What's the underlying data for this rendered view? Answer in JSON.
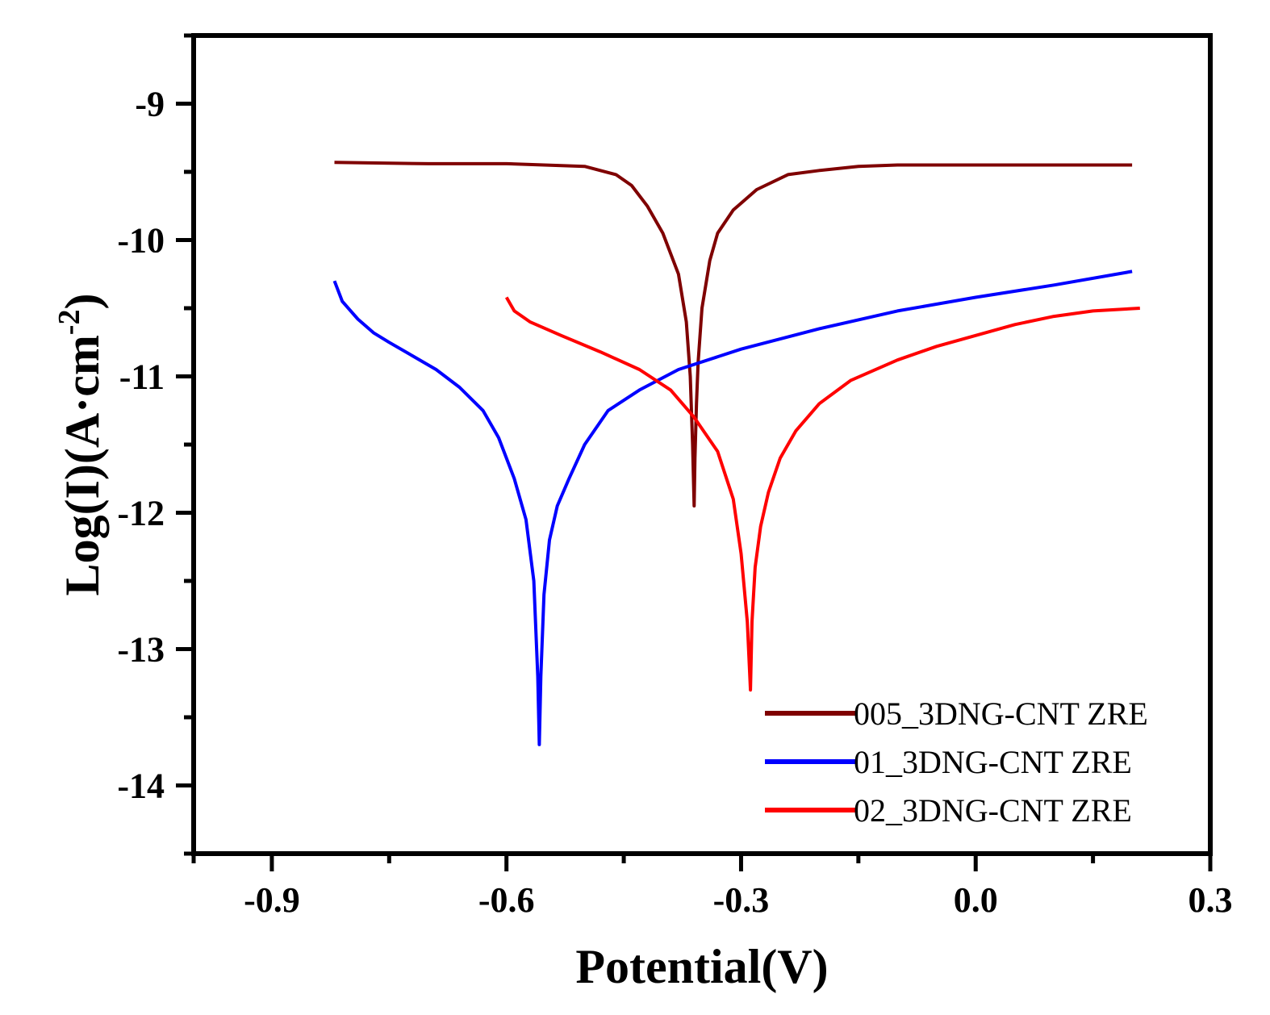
{
  "chart_data": {
    "type": "line",
    "title": "",
    "xlabel": "Potential(V)",
    "ylabel_main": "Log(I)(A·cm",
    "ylabel_sup": "-2",
    "ylabel_close": ")",
    "xlim": [
      -1.0,
      0.3
    ],
    "ylim": [
      -14.5,
      -8.5
    ],
    "xticks": [
      -0.9,
      -0.6,
      -0.3,
      0.0,
      0.3
    ],
    "xtick_labels": [
      "-0.9",
      "-0.6",
      "-0.3",
      "0.0",
      "0.3"
    ],
    "xticks_minor": [
      -1.0,
      -0.75,
      -0.45,
      -0.15,
      0.15
    ],
    "yticks": [
      -14,
      -13,
      -12,
      -11,
      -10,
      -9
    ],
    "ytick_labels": [
      "-14",
      "-13",
      "-12",
      "-11",
      "-10",
      "-9"
    ],
    "yticks_minor": [
      -14.5,
      -13.5,
      -12.5,
      -11.5,
      -10.5,
      -9.5,
      -8.5
    ],
    "legend_position": "bottom-right",
    "series": [
      {
        "name": "005_3DNG-CNT ZRE",
        "color": "#7f0000",
        "points": [
          [
            -0.82,
            -9.43
          ],
          [
            -0.7,
            -9.44
          ],
          [
            -0.6,
            -9.44
          ],
          [
            -0.5,
            -9.46
          ],
          [
            -0.46,
            -9.52
          ],
          [
            -0.44,
            -9.6
          ],
          [
            -0.42,
            -9.75
          ],
          [
            -0.4,
            -9.95
          ],
          [
            -0.38,
            -10.25
          ],
          [
            -0.37,
            -10.6
          ],
          [
            -0.365,
            -11.0
          ],
          [
            -0.362,
            -11.5
          ],
          [
            -0.36,
            -11.95
          ],
          [
            -0.359,
            -11.6
          ],
          [
            -0.357,
            -11.2
          ],
          [
            -0.355,
            -10.9
          ],
          [
            -0.35,
            -10.5
          ],
          [
            -0.34,
            -10.15
          ],
          [
            -0.33,
            -9.95
          ],
          [
            -0.31,
            -9.78
          ],
          [
            -0.28,
            -9.63
          ],
          [
            -0.24,
            -9.52
          ],
          [
            -0.2,
            -9.49
          ],
          [
            -0.15,
            -9.46
          ],
          [
            -0.1,
            -9.45
          ],
          [
            0.0,
            -9.45
          ],
          [
            0.2,
            -9.45
          ]
        ]
      },
      {
        "name": "01_3DNG-CNT ZRE",
        "color": "#0000ff",
        "points": [
          [
            -0.82,
            -10.3
          ],
          [
            -0.81,
            -10.45
          ],
          [
            -0.79,
            -10.58
          ],
          [
            -0.77,
            -10.68
          ],
          [
            -0.75,
            -10.75
          ],
          [
            -0.72,
            -10.85
          ],
          [
            -0.69,
            -10.95
          ],
          [
            -0.66,
            -11.08
          ],
          [
            -0.63,
            -11.25
          ],
          [
            -0.61,
            -11.45
          ],
          [
            -0.59,
            -11.75
          ],
          [
            -0.575,
            -12.05
          ],
          [
            -0.565,
            -12.5
          ],
          [
            -0.56,
            -13.2
          ],
          [
            -0.558,
            -13.7
          ],
          [
            -0.556,
            -13.2
          ],
          [
            -0.552,
            -12.6
          ],
          [
            -0.545,
            -12.2
          ],
          [
            -0.535,
            -11.95
          ],
          [
            -0.52,
            -11.75
          ],
          [
            -0.5,
            -11.5
          ],
          [
            -0.47,
            -11.25
          ],
          [
            -0.43,
            -11.1
          ],
          [
            -0.38,
            -10.95
          ],
          [
            -0.3,
            -10.8
          ],
          [
            -0.2,
            -10.65
          ],
          [
            -0.1,
            -10.52
          ],
          [
            0.0,
            -10.42
          ],
          [
            0.1,
            -10.33
          ],
          [
            0.2,
            -10.23
          ]
        ]
      },
      {
        "name": "02_3DNG-CNT ZRE",
        "color": "#ff0000",
        "points": [
          [
            -0.6,
            -10.42
          ],
          [
            -0.59,
            -10.52
          ],
          [
            -0.57,
            -10.6
          ],
          [
            -0.53,
            -10.7
          ],
          [
            -0.48,
            -10.82
          ],
          [
            -0.43,
            -10.95
          ],
          [
            -0.39,
            -11.1
          ],
          [
            -0.36,
            -11.3
          ],
          [
            -0.33,
            -11.55
          ],
          [
            -0.31,
            -11.9
          ],
          [
            -0.3,
            -12.3
          ],
          [
            -0.292,
            -12.8
          ],
          [
            -0.288,
            -13.3
          ],
          [
            -0.286,
            -12.8
          ],
          [
            -0.282,
            -12.4
          ],
          [
            -0.275,
            -12.1
          ],
          [
            -0.265,
            -11.85
          ],
          [
            -0.25,
            -11.6
          ],
          [
            -0.23,
            -11.4
          ],
          [
            -0.2,
            -11.2
          ],
          [
            -0.16,
            -11.03
          ],
          [
            -0.1,
            -10.88
          ],
          [
            -0.05,
            -10.78
          ],
          [
            0.0,
            -10.7
          ],
          [
            0.05,
            -10.62
          ],
          [
            0.1,
            -10.56
          ],
          [
            0.15,
            -10.52
          ],
          [
            0.21,
            -10.5
          ]
        ]
      }
    ]
  }
}
